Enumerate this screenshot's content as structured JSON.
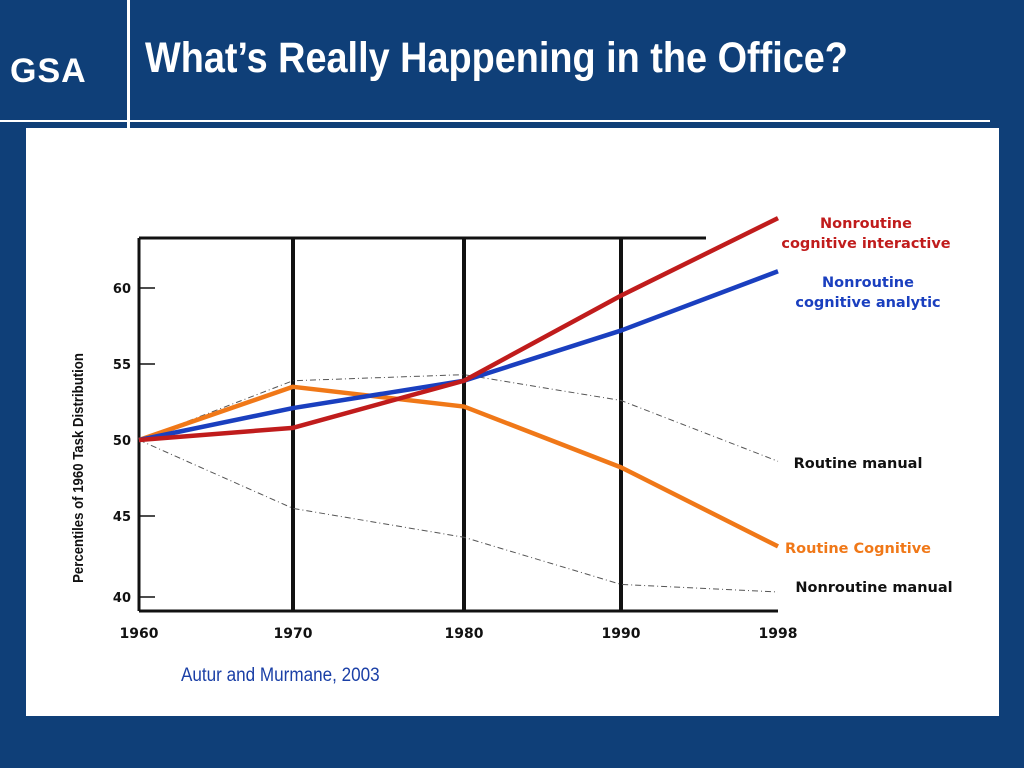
{
  "header": {
    "logo_text": "GSA",
    "title": "What’s Really Happening in the Office?"
  },
  "citation": "Autur and Murmane, 2003",
  "colors": {
    "background": "#0f3f78",
    "nonroutine_interactive": "#c01c1c",
    "nonroutine_analytic": "#1a3fbf",
    "routine_cognitive": "#f07818",
    "dashed_lines": "#555555"
  },
  "chart_data": {
    "type": "line",
    "title": "",
    "xlabel": "",
    "ylabel": "Percentiles of 1960 Task Distribution",
    "x": [
      1960,
      1970,
      1980,
      1990,
      1998
    ],
    "x_tick_labels": [
      "1960",
      "1970",
      "1980",
      "1990",
      "1998"
    ],
    "y_ticks": [
      40,
      45,
      50,
      55,
      60
    ],
    "ylim": [
      38,
      64
    ],
    "grid": false,
    "series": [
      {
        "name": "Nonroutine cognitive interactive",
        "label_lines": [
          "Nonroutine",
          "cognitive interactive"
        ],
        "color": "#c01c1c",
        "style": "solid",
        "values": [
          50,
          50.8,
          53.9,
          59.5,
          64.6
        ]
      },
      {
        "name": "Nonroutine cognitive analytic",
        "label_lines": [
          "Nonroutine",
          "cognitive analytic"
        ],
        "color": "#1a3fbf",
        "style": "solid",
        "values": [
          50,
          52.1,
          53.9,
          57.2,
          61.1
        ]
      },
      {
        "name": "Routine manual",
        "label_lines": [
          "Routine manual"
        ],
        "color": "#555555",
        "style": "dashdot",
        "values": [
          50,
          53.9,
          54.3,
          52.6,
          48.6
        ]
      },
      {
        "name": "Routine Cognitive",
        "label_lines": [
          "Routine Cognitive"
        ],
        "color": "#f07818",
        "style": "solid",
        "values": [
          50,
          53.5,
          52.2,
          48.2,
          43
        ]
      },
      {
        "name": "Nonroutine manual",
        "label_lines": [
          "Nonroutine manual"
        ],
        "color": "#555555",
        "style": "dashdot",
        "values": [
          50,
          45.5,
          43.6,
          40.5,
          40
        ]
      }
    ]
  }
}
